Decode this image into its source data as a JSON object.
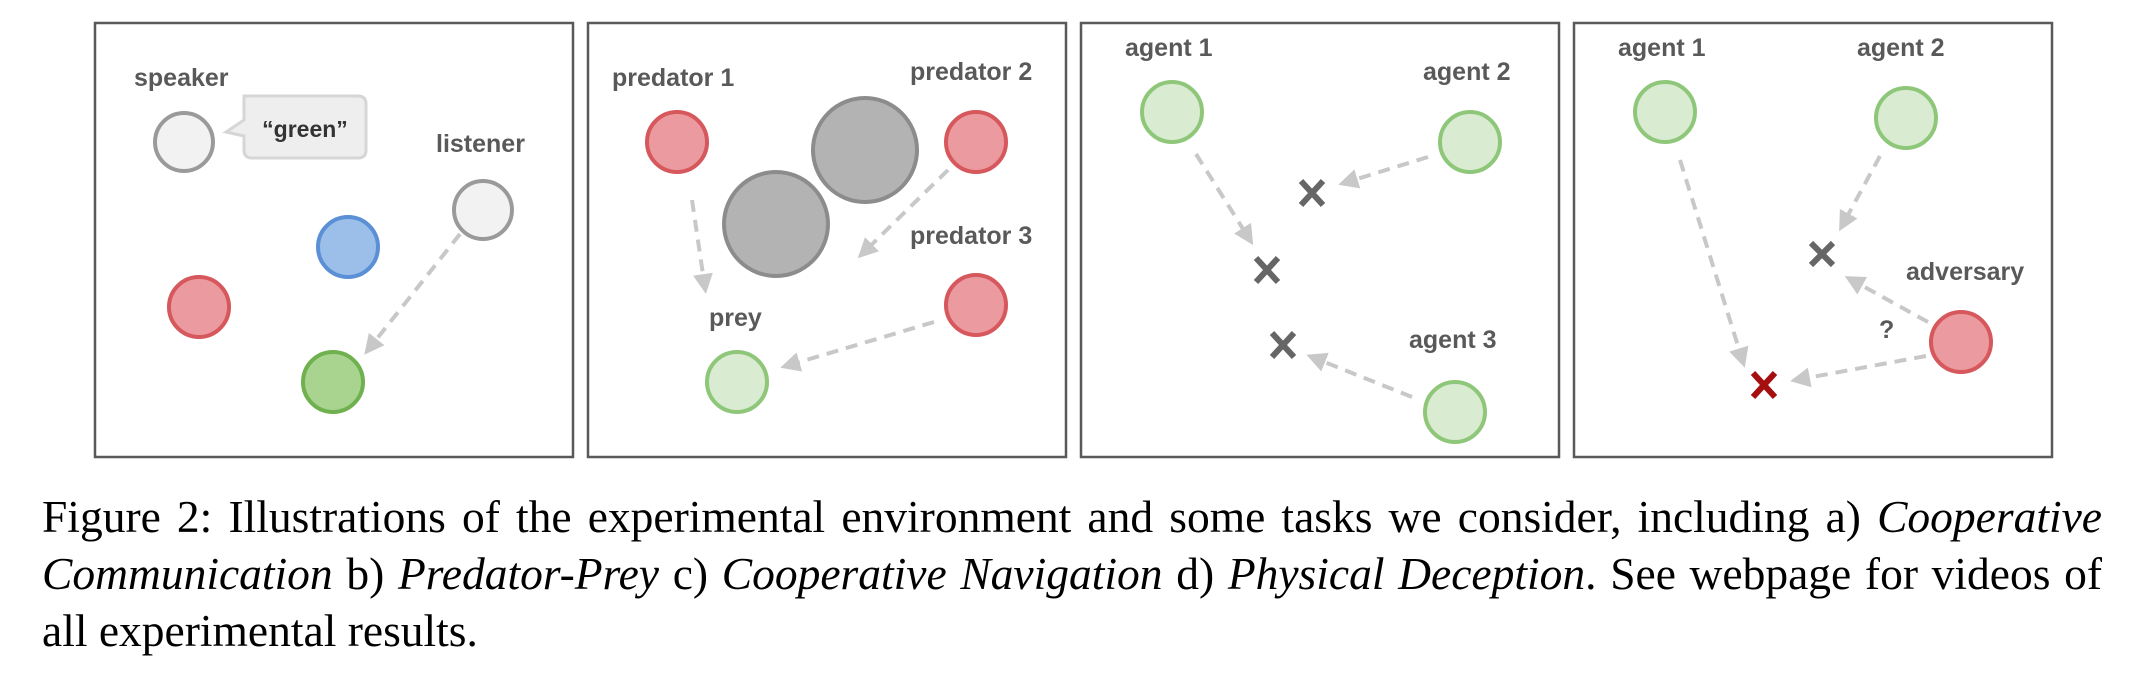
{
  "figure": {
    "colors": {
      "red_fill": "#eb9b9f",
      "red_stroke": "#d6575c",
      "green_fill": "#d9ecd1",
      "green_stroke": "#8fc77a",
      "green_dark_fill": "#a8d48f",
      "green_dark_stroke": "#6fb04f",
      "blue_fill": "#9bbfe8",
      "blue_stroke": "#5b8fd6",
      "white_fill": "#f2f2f2",
      "white_stroke": "#9a9a9a",
      "gray_fill": "#b3b3b3",
      "gray_stroke": "#8c8c8c",
      "x_gray": "#666666",
      "x_red": "#a50f0f"
    },
    "panel_a": {
      "speaker": "speaker",
      "bubble": "“green”",
      "listener": "listener"
    },
    "panel_b": {
      "predator1": "predator 1",
      "predator2": "predator 2",
      "predator3": "predator 3",
      "prey": "prey"
    },
    "panel_c": {
      "agent1": "agent 1",
      "agent2": "agent 2",
      "agent3": "agent 3"
    },
    "panel_d": {
      "agent1": "agent 1",
      "agent2": "agent 2",
      "adversary": "adversary",
      "question": "?"
    }
  },
  "caption": {
    "prefix": "Figure 2: Illustrations of the experimental environment and some tasks we consider, including a) ",
    "task_a": "Cooperative Communication",
    "sep_b": " b) ",
    "task_b": "Predator-Prey",
    "sep_c": " c) ",
    "task_c": "Cooperative Navigation",
    "sep_d": " d) ",
    "task_d": "Physical Deception",
    "suffix": ". See webpage for videos of all experimental results."
  }
}
